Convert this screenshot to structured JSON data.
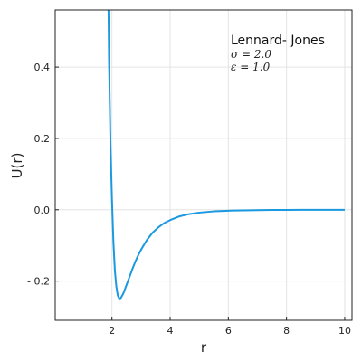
{
  "chart_data": {
    "type": "line",
    "title": "",
    "xlabel": "r",
    "ylabel": "U(r)",
    "xlim": [
      0.05,
      10.25
    ],
    "ylim": [
      -0.31,
      0.56
    ],
    "x_ticks": [
      2,
      4,
      6,
      8,
      10
    ],
    "x_tick_labels": [
      "2",
      "4",
      "6",
      "8",
      "10"
    ],
    "y_ticks": [
      -0.2,
      0.0,
      0.2,
      0.4
    ],
    "y_tick_labels": [
      "- 0.2",
      "0.0",
      "0.2",
      "0.4"
    ],
    "grid": true,
    "legend": "none",
    "annotation": {
      "title": "Lennard- Jones",
      "lines": [
        "σ = 2.0",
        "ε = 1.0"
      ]
    },
    "series": [
      {
        "color": "#1a99e0",
        "x": [
          1.85,
          1.9,
          1.95,
          2.0,
          2.05,
          2.1,
          2.15,
          2.2,
          2.25,
          2.3,
          2.35,
          2.4,
          2.45,
          2.5,
          2.6,
          2.7,
          2.8,
          2.9,
          3.0,
          3.2,
          3.4,
          3.6,
          3.8,
          4.0,
          4.3,
          4.6,
          5.0,
          5.5,
          6.0,
          6.5,
          7.0,
          7.5,
          8.0,
          8.5,
          9.0,
          9.5,
          10.0
        ],
        "y": [
          0.8,
          0.42,
          0.18,
          0.03,
          -0.09,
          -0.17,
          -0.215,
          -0.24,
          -0.249,
          -0.248,
          -0.241,
          -0.233,
          -0.222,
          -0.211,
          -0.189,
          -0.167,
          -0.146,
          -0.128,
          -0.112,
          -0.085,
          -0.064,
          -0.049,
          -0.037,
          -0.029,
          -0.019,
          -0.013,
          -0.008,
          -0.0045,
          -0.0027,
          -0.0017,
          -0.0011,
          -0.0007,
          -0.0005,
          -0.0003,
          -0.0002,
          -0.0001,
          -0.0001
        ]
      }
    ]
  }
}
